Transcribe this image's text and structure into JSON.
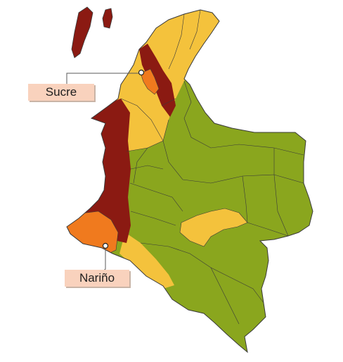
{
  "map": {
    "labels": {
      "sucre": "Sucre",
      "narino": "Nariño"
    },
    "colors": {
      "green": "#8aa61e",
      "yellow": "#f4c23c",
      "dark_red": "#8b1a12",
      "orange": "#f07a1e",
      "label_bg": "#f9d2bd",
      "border": "#3a3a3a"
    }
  }
}
